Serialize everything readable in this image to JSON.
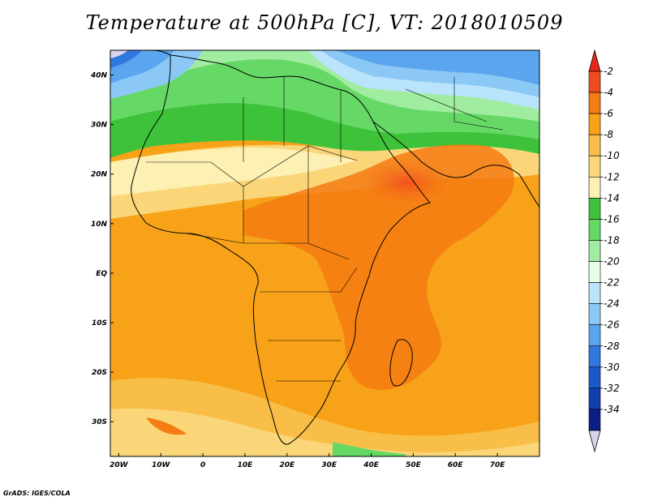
{
  "title": "Temperature at 500hPa [C], VT: 2018010509",
  "credit": "GrADS: IGES/COLA",
  "lon_ticks": [
    {
      "value": -20,
      "label": "20W"
    },
    {
      "value": -10,
      "label": "10W"
    },
    {
      "value": 0,
      "label": "0"
    },
    {
      "value": 10,
      "label": "10E"
    },
    {
      "value": 20,
      "label": "20E"
    },
    {
      "value": 30,
      "label": "30E"
    },
    {
      "value": 40,
      "label": "40E"
    },
    {
      "value": 50,
      "label": "50E"
    },
    {
      "value": 60,
      "label": "60E"
    },
    {
      "value": 70,
      "label": "70E"
    }
  ],
  "lat_ticks": [
    {
      "value": 40,
      "label": "40N"
    },
    {
      "value": 30,
      "label": "30N"
    },
    {
      "value": 20,
      "label": "20N"
    },
    {
      "value": 10,
      "label": "10N"
    },
    {
      "value": 0,
      "label": "EQ"
    },
    {
      "value": -10,
      "label": "10S"
    },
    {
      "value": -20,
      "label": "20S"
    },
    {
      "value": -30,
      "label": "30S"
    }
  ],
  "extent": {
    "lon": [
      -22,
      80
    ],
    "lat": [
      -37,
      45
    ]
  },
  "colorbar": {
    "levels": [
      "-2",
      "-4",
      "-6",
      "-8",
      "-10",
      "-12",
      "-14",
      "-16",
      "-18",
      "-20",
      "-22",
      "-24",
      "-26",
      "-28",
      "-30",
      "-32",
      "-34"
    ],
    "colors": [
      "#f24a1f",
      "#f57b13",
      "#f7a219",
      "#f9be47",
      "#fad678",
      "#fdf0b3",
      "#3ec23a",
      "#66d866",
      "#a0eca0",
      "#e6ffe6",
      "#b9e4fb",
      "#8cc8f5",
      "#5aa5ee",
      "#2f78e0",
      "#1a59cc",
      "#1040b0",
      "#0a1f86"
    ],
    "top_arrow": "#e6281a",
    "bottom_arrow": "#d8d4f0"
  }
}
